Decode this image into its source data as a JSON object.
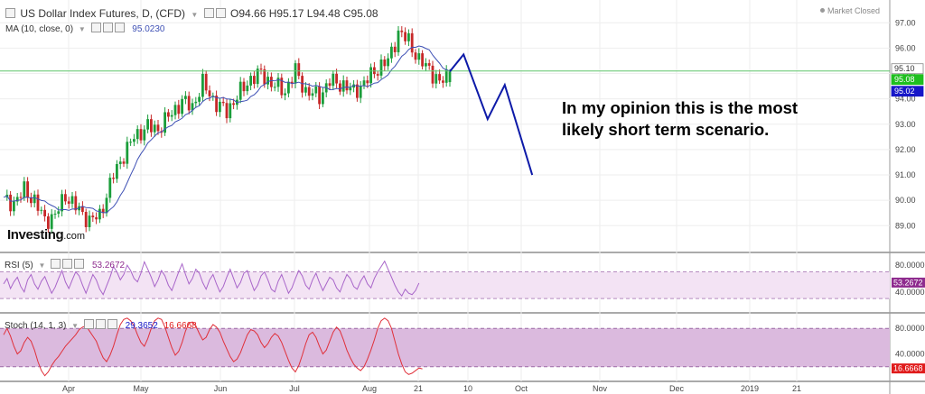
{
  "header": {
    "symbol": "US Dollar Index Futures, D, (CFD)",
    "open_label": "O",
    "open": "94.66",
    "high_label": "H",
    "high": "95.17",
    "low_label": "L",
    "low": "94.48",
    "close_label": "C",
    "close": "95.08",
    "market_status": "Market Closed"
  },
  "ma": {
    "label": "MA (10, close, 0)",
    "value": "95.0230"
  },
  "rsi": {
    "label": "RSI (5)",
    "value": "53.2672"
  },
  "stoch": {
    "label": "Stoch (14, 1, 3)",
    "value_k": "29.3652",
    "value_d": "16.6668"
  },
  "annotation": {
    "line1": "In my opinion this is the most",
    "line2": "likely short term scenario."
  },
  "logo": {
    "main": "Investing",
    "suffix": ".com"
  },
  "colors": {
    "up": "#1a9d3a",
    "down": "#c62828",
    "ma": "#3f51b5",
    "forecast": "#0d1aa8",
    "rsi_line": "#a865c9",
    "rsi_band": "#f3e3f4",
    "stoch_k": "#e0303a",
    "stoch_band": "#dbbade",
    "hline": "#5fc56a",
    "tag_price_line": "#d0d0d0",
    "tag_close": "#1fbf1f",
    "tag_ma": "#1717c8",
    "tag_rsi": "#8e2b8e",
    "tag_stoch": "#e01b1b"
  },
  "chart_data": [
    {
      "type": "candlestick",
      "title": "US Dollar Index Futures, D, (CFD)",
      "x_tick_labels": [
        "Apr",
        "May",
        "Jun",
        "Jul",
        "Aug",
        "21",
        "10",
        "Oct",
        "Nov",
        "Dec",
        "2019",
        "21"
      ],
      "y_tick_labels": [
        "89.00",
        "90.00",
        "91.00",
        "92.00",
        "93.00",
        "94.00",
        "95.00",
        "96.00",
        "97.00"
      ],
      "ylim": [
        88.3,
        97.4
      ],
      "anchors": [
        [
          0,
          90.0
        ],
        [
          3,
          89.9
        ],
        [
          6,
          90.4
        ],
        [
          9,
          90.0
        ],
        [
          12,
          89.2
        ],
        [
          15,
          89.4
        ],
        [
          18,
          90.2
        ],
        [
          22,
          89.6
        ],
        [
          25,
          89.2
        ],
        [
          28,
          89.4
        ],
        [
          32,
          91.0
        ],
        [
          35,
          91.8
        ],
        [
          38,
          92.5
        ],
        [
          42,
          92.9
        ],
        [
          45,
          92.8
        ],
        [
          48,
          93.3
        ],
        [
          52,
          93.9
        ],
        [
          55,
          93.7
        ],
        [
          58,
          94.6
        ],
        [
          62,
          93.8
        ],
        [
          65,
          93.5
        ],
        [
          68,
          94.1
        ],
        [
          72,
          94.8
        ],
        [
          75,
          95.0
        ],
        [
          78,
          94.6
        ],
        [
          82,
          94.3
        ],
        [
          85,
          95.1
        ],
        [
          88,
          94.3
        ],
        [
          92,
          94.1
        ],
        [
          95,
          94.7
        ],
        [
          98,
          94.6
        ],
        [
          102,
          94.3
        ],
        [
          105,
          94.6
        ],
        [
          108,
          95.1
        ],
        [
          112,
          95.5
        ],
        [
          115,
          96.6
        ],
        [
          118,
          96.3
        ],
        [
          121,
          95.5
        ],
        [
          124,
          95.2
        ],
        [
          127,
          94.6
        ],
        [
          130,
          95.08
        ]
      ],
      "last_candle": {
        "open": 94.66,
        "high": 95.17,
        "low": 94.48,
        "close": 95.08
      },
      "moving_average": {
        "name": "MA (10, close, 0)",
        "last": 95.023
      },
      "horizontal_line": 95.1,
      "price_tags": [
        "95.10",
        "95.08",
        "95.02"
      ],
      "forecast_path": [
        [
          130,
          95.08
        ],
        [
          134,
          95.75
        ],
        [
          141,
          93.2
        ],
        [
          146,
          94.55
        ],
        [
          154,
          91.0
        ]
      ]
    },
    {
      "type": "line",
      "name": "RSI (5)",
      "y_tick_labels": [
        "40.0000",
        "80.0000"
      ],
      "levels": [
        30,
        70
      ],
      "ylim": [
        10,
        95
      ],
      "last": 53.2672,
      "values": [
        52,
        60,
        45,
        55,
        62,
        48,
        40,
        58,
        66,
        52,
        44,
        56,
        63,
        50,
        38,
        47,
        60,
        72,
        55,
        45,
        58,
        70,
        64,
        50,
        38,
        52,
        66,
        58,
        44,
        36,
        49,
        62,
        78,
        70,
        58,
        66,
        80,
        72,
        60,
        55,
        68,
        85,
        74,
        62,
        48,
        58,
        72,
        64,
        50,
        42,
        56,
        70,
        82,
        66,
        52,
        60,
        74,
        68,
        54,
        44,
        58,
        66,
        52,
        40,
        48,
        62,
        74,
        60,
        46,
        54,
        68,
        72,
        56,
        42,
        50,
        64,
        70,
        58,
        44,
        40,
        56,
        66,
        52,
        38,
        46,
        60,
        72,
        64,
        50,
        44,
        58,
        68,
        54,
        42,
        52,
        62,
        58,
        46,
        40,
        54,
        66,
        60,
        48,
        44,
        56,
        64,
        52,
        46,
        60,
        70,
        78,
        86,
        74,
        62,
        50,
        40,
        34,
        44,
        38,
        36,
        42,
        53.27
      ]
    },
    {
      "type": "line",
      "name": "Stoch (14, 1, 3)",
      "y_tick_labels": [
        "40.0000",
        "80.0000"
      ],
      "levels": [
        20,
        80
      ],
      "ylim": [
        0,
        100
      ],
      "last_k": 29.3652,
      "last_d": 16.6668,
      "values": [
        70,
        80,
        68,
        52,
        40,
        45,
        58,
        66,
        60,
        46,
        28,
        14,
        6,
        12,
        22,
        30,
        36,
        44,
        52,
        58,
        64,
        70,
        78,
        82,
        84,
        76,
        68,
        60,
        46,
        34,
        28,
        38,
        52,
        70,
        86,
        94,
        96,
        92,
        84,
        70,
        58,
        52,
        64,
        80,
        92,
        96,
        94,
        82,
        66,
        50,
        38,
        44,
        58,
        76,
        88,
        90,
        84,
        72,
        62,
        66,
        78,
        86,
        82,
        74,
        60,
        48,
        36,
        28,
        32,
        42,
        56,
        70,
        78,
        76,
        70,
        58,
        50,
        56,
        66,
        72,
        68,
        58,
        44,
        30,
        18,
        12,
        22,
        38,
        56,
        70,
        74,
        66,
        52,
        40,
        46,
        60,
        74,
        82,
        76,
        62,
        46,
        34,
        24,
        18,
        14,
        20,
        32,
        46,
        62,
        80,
        92,
        96,
        92,
        80,
        60,
        40,
        24,
        12,
        8,
        10,
        14,
        18,
        16.67
      ]
    }
  ]
}
